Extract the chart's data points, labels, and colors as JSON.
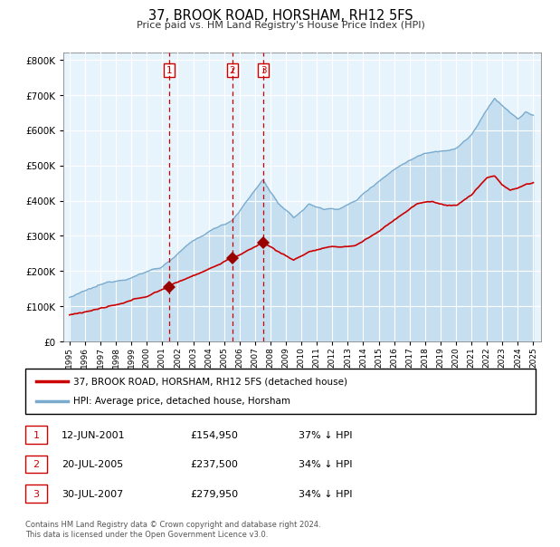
{
  "title": "37, BROOK ROAD, HORSHAM, RH12 5FS",
  "subtitle": "Price paid vs. HM Land Registry's House Price Index (HPI)",
  "legend_line1": "37, BROOK ROAD, HORSHAM, RH12 5FS (detached house)",
  "legend_line2": "HPI: Average price, detached house, Horsham",
  "table_rows": [
    {
      "num": "1",
      "date": "12-JUN-2001",
      "price": "£154,950",
      "pct": "37% ↓ HPI"
    },
    {
      "num": "2",
      "date": "20-JUL-2005",
      "price": "£237,500",
      "pct": "34% ↓ HPI"
    },
    {
      "num": "3",
      "date": "30-JUL-2007",
      "price": "£279,950",
      "pct": "34% ↓ HPI"
    }
  ],
  "footer": "Contains HM Land Registry data © Crown copyright and database right 2024.\nThis data is licensed under the Open Government Licence v3.0.",
  "hpi_color": "#7aabcf",
  "hpi_fill": "#c5dff0",
  "price_color": "#cc0000",
  "plot_bg": "#e8f4fc",
  "vline1_x": 2001.44,
  "vline2_x": 2005.54,
  "vline3_x": 2007.54,
  "marker1_x": 2001.44,
  "marker1_y": 154950,
  "marker2_x": 2005.54,
  "marker2_y": 237500,
  "marker3_x": 2007.54,
  "marker3_y": 279950,
  "ylim": [
    0,
    820000
  ],
  "xlim_start": 1994.6,
  "xlim_end": 2025.5
}
